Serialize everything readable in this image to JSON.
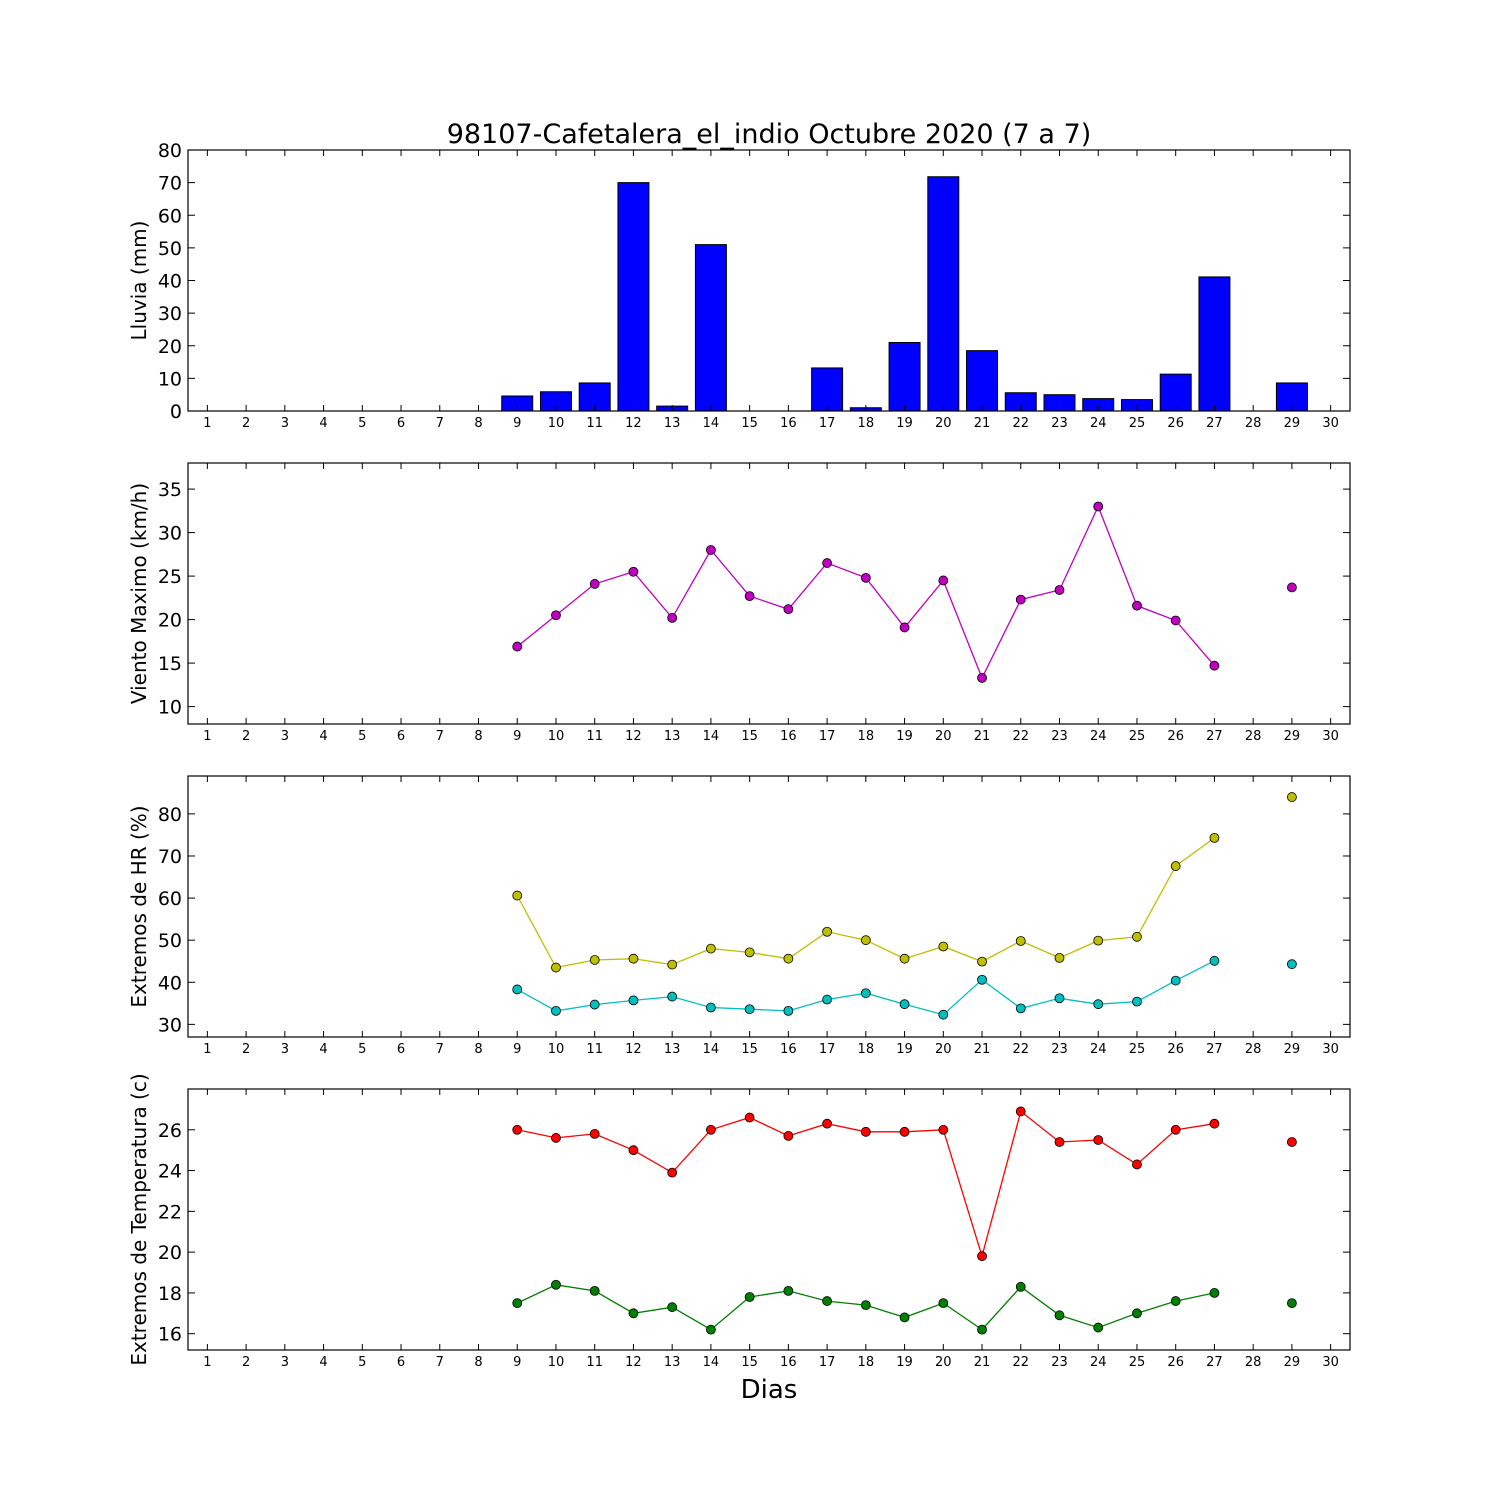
{
  "chart_data": [
    {
      "type": "bar",
      "title": "98107-Cafetalera_el_indio Octubre 2020  (7 a 7)",
      "ylabel": "Lluvia (mm)",
      "xlabel": "",
      "xlim": [
        0.5,
        30.5
      ],
      "ylim": [
        0,
        80
      ],
      "yticks": [
        0,
        10,
        20,
        30,
        40,
        50,
        60,
        70,
        80
      ],
      "xticks": [
        "1",
        "2",
        "3",
        "4",
        "5",
        "6",
        "7",
        "8",
        "9",
        "10",
        "11",
        "12",
        "13",
        "14",
        "15",
        "16",
        "17",
        "18",
        "19",
        "20",
        "21",
        "22",
        "23",
        "24",
        "25",
        "26",
        "27",
        "28",
        "29",
        "30"
      ],
      "grid": false,
      "series": [
        {
          "color": "#0000ff",
          "x": [
            9,
            10,
            11,
            12,
            13,
            14,
            15,
            16,
            17,
            18,
            19,
            20,
            21,
            22,
            23,
            24,
            25,
            26,
            27,
            28,
            29
          ],
          "values": [
            4.6,
            5.9,
            8.6,
            70.0,
            1.5,
            51.0,
            0.0,
            0.0,
            13.2,
            1.0,
            21.0,
            71.8,
            18.5,
            5.6,
            5.0,
            3.8,
            3.5,
            11.3,
            41.1,
            0.0,
            8.6
          ]
        }
      ]
    },
    {
      "type": "line",
      "ylabel": "Viento Maximo (km/h)",
      "xlim": [
        0.5,
        30.5
      ],
      "ylim": [
        8,
        38
      ],
      "yticks": [
        10,
        15,
        20,
        25,
        30,
        35
      ],
      "xticks": [
        "1",
        "2",
        "3",
        "4",
        "5",
        "6",
        "7",
        "8",
        "9",
        "10",
        "11",
        "12",
        "13",
        "14",
        "15",
        "16",
        "17",
        "18",
        "19",
        "20",
        "21",
        "22",
        "23",
        "24",
        "25",
        "26",
        "27",
        "28",
        "29",
        "30"
      ],
      "grid": false,
      "series": [
        {
          "color": "#bf00bf",
          "x": [
            9,
            10,
            11,
            12,
            13,
            14,
            15,
            16,
            17,
            18,
            19,
            20,
            21,
            22,
            23,
            24,
            25,
            26,
            27,
            28,
            29
          ],
          "values": [
            16.9,
            20.5,
            24.1,
            25.5,
            20.2,
            28.0,
            22.7,
            21.2,
            26.5,
            24.8,
            19.1,
            24.5,
            13.3,
            22.3,
            23.4,
            33.0,
            21.6,
            19.9,
            14.7,
            null,
            23.7
          ]
        }
      ]
    },
    {
      "type": "line",
      "ylabel": "Extremos de HR (%)",
      "xlim": [
        0.5,
        30.5
      ],
      "ylim": [
        27,
        89
      ],
      "yticks": [
        30,
        40,
        50,
        60,
        70,
        80
      ],
      "xticks": [
        "1",
        "2",
        "3",
        "4",
        "5",
        "6",
        "7",
        "8",
        "9",
        "10",
        "11",
        "12",
        "13",
        "14",
        "15",
        "16",
        "17",
        "18",
        "19",
        "20",
        "21",
        "22",
        "23",
        "24",
        "25",
        "26",
        "27",
        "28",
        "29",
        "30"
      ],
      "grid": false,
      "series": [
        {
          "color": "#bfbf00",
          "x": [
            9,
            10,
            11,
            12,
            13,
            14,
            15,
            16,
            17,
            18,
            19,
            20,
            21,
            22,
            23,
            24,
            25,
            26,
            27,
            28,
            29
          ],
          "values": [
            60.6,
            43.5,
            45.3,
            45.6,
            44.2,
            48.0,
            47.1,
            45.6,
            52.0,
            50.0,
            45.6,
            48.5,
            44.9,
            49.8,
            45.8,
            49.9,
            50.8,
            67.6,
            74.3,
            null,
            84.0
          ]
        },
        {
          "color": "#00bfbf",
          "x": [
            9,
            10,
            11,
            12,
            13,
            14,
            15,
            16,
            17,
            18,
            19,
            20,
            21,
            22,
            23,
            24,
            25,
            26,
            27,
            28,
            29
          ],
          "values": [
            38.3,
            33.2,
            34.7,
            35.7,
            36.6,
            34.0,
            33.6,
            33.2,
            35.9,
            37.4,
            34.8,
            32.3,
            40.6,
            33.8,
            36.2,
            34.8,
            35.4,
            40.4,
            45.1,
            null,
            44.3
          ]
        }
      ]
    },
    {
      "type": "line",
      "ylabel": "Extremos de Temperatura (c)",
      "xlabel": "Dias",
      "xlim": [
        0.5,
        30.5
      ],
      "ylim": [
        15.2,
        28.0
      ],
      "yticks": [
        16,
        18,
        20,
        22,
        24,
        26
      ],
      "xticks": [
        "1",
        "2",
        "3",
        "4",
        "5",
        "6",
        "7",
        "8",
        "9",
        "10",
        "11",
        "12",
        "13",
        "14",
        "15",
        "16",
        "17",
        "18",
        "19",
        "20",
        "21",
        "22",
        "23",
        "24",
        "25",
        "26",
        "27",
        "28",
        "29",
        "30"
      ],
      "grid": false,
      "series": [
        {
          "color": "#ff0000",
          "x": [
            9,
            10,
            11,
            12,
            13,
            14,
            15,
            16,
            17,
            18,
            19,
            20,
            21,
            22,
            23,
            24,
            25,
            26,
            27,
            28,
            29
          ],
          "values": [
            26.0,
            25.6,
            25.8,
            25.0,
            23.9,
            26.0,
            26.6,
            25.7,
            26.3,
            25.9,
            25.9,
            26.0,
            19.8,
            26.9,
            25.4,
            25.5,
            24.3,
            26.0,
            26.3,
            null,
            25.4
          ]
        },
        {
          "color": "#008000",
          "x": [
            9,
            10,
            11,
            12,
            13,
            14,
            15,
            16,
            17,
            18,
            19,
            20,
            21,
            22,
            23,
            24,
            25,
            26,
            27,
            28,
            29
          ],
          "values": [
            17.5,
            18.4,
            18.1,
            17.0,
            17.3,
            16.2,
            17.8,
            18.1,
            17.6,
            17.4,
            16.8,
            17.5,
            16.2,
            18.3,
            16.9,
            16.3,
            17.0,
            17.6,
            18.0,
            null,
            17.5
          ]
        }
      ]
    }
  ]
}
